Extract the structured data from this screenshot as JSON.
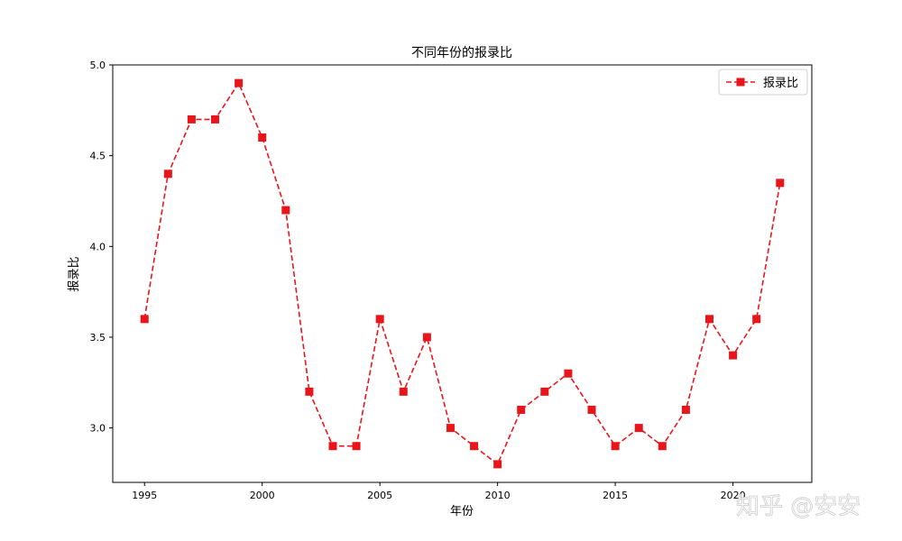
{
  "chart_data": {
    "type": "line",
    "title": "不同年份的报录比",
    "xlabel": "年份",
    "ylabel": "报录比",
    "x": [
      1995,
      1996,
      1997,
      1998,
      1999,
      2000,
      2001,
      2002,
      2003,
      2004,
      2005,
      2006,
      2007,
      2008,
      2009,
      2010,
      2011,
      2012,
      2013,
      2014,
      2015,
      2016,
      2017,
      2018,
      2019,
      2020,
      2021,
      2022
    ],
    "series": [
      {
        "name": "报录比",
        "values": [
          3.6,
          4.4,
          4.7,
          4.7,
          4.9,
          4.6,
          4.2,
          3.2,
          2.9,
          2.9,
          3.6,
          3.2,
          3.5,
          3.0,
          2.9,
          2.8,
          3.1,
          3.2,
          3.3,
          3.1,
          2.9,
          3.0,
          2.9,
          3.1,
          3.6,
          3.4,
          3.6,
          4.35
        ],
        "color": "#e8161a",
        "line_style": "dashed",
        "marker": "square"
      }
    ],
    "xlim": [
      1993.65,
      2023.35
    ],
    "ylim": [
      2.7,
      5.0
    ],
    "xticks": [
      1995,
      2000,
      2005,
      2010,
      2015,
      2020
    ],
    "xtick_labels": [
      "1995",
      "2000",
      "2005",
      "2010",
      "2015",
      "2020"
    ],
    "yticks": [
      3.0,
      3.5,
      4.0,
      4.5,
      5.0
    ],
    "ytick_labels": [
      "3.0",
      "3.5",
      "4.0",
      "4.5",
      "5.0"
    ],
    "grid": false,
    "legend": "top-right"
  },
  "watermark": {
    "text": "知乎 @安安"
  }
}
